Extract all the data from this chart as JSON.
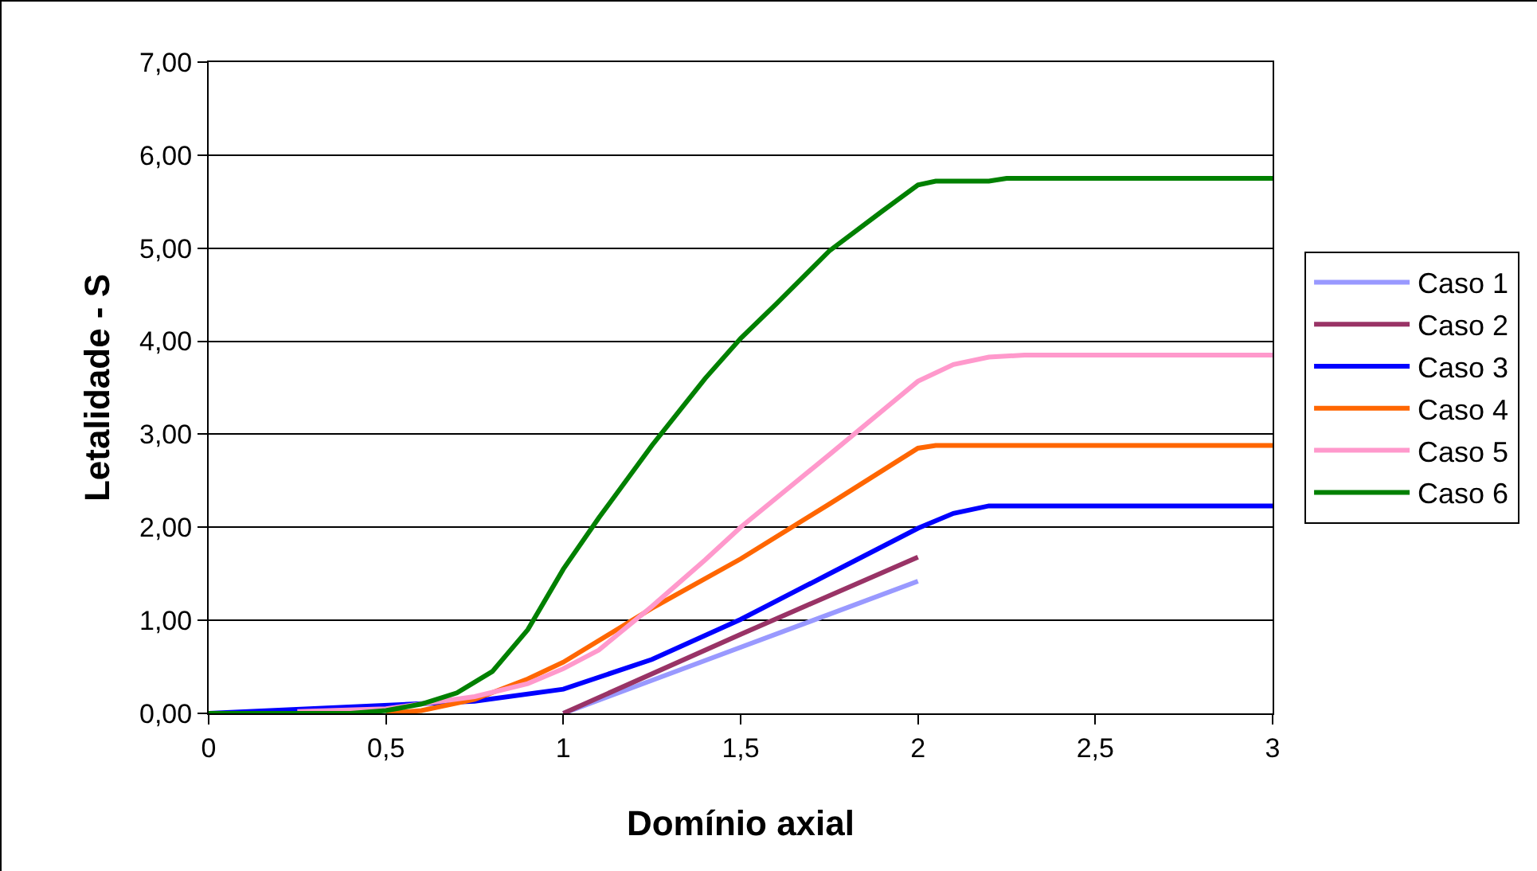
{
  "chart_data": {
    "type": "line",
    "xlabel": "Domínio axial",
    "ylabel": "Letalidade - S",
    "xlim": [
      0,
      3
    ],
    "xticks": [
      0,
      {
        "value": 0.5,
        "label": "0,5"
      },
      1,
      {
        "value": 1.5,
        "label": "1,5"
      },
      2,
      {
        "value": 2.5,
        "label": "2,5"
      },
      3
    ],
    "ylim": [
      0,
      7
    ],
    "yticks": [
      {
        "value": 0,
        "label": "0,00"
      },
      {
        "value": 1,
        "label": "1,00"
      },
      {
        "value": 2,
        "label": "2,00"
      },
      {
        "value": 3,
        "label": "3,00"
      },
      {
        "value": 4,
        "label": "4,00"
      },
      {
        "value": 5,
        "label": "5,00"
      },
      {
        "value": 6,
        "label": "6,00"
      },
      {
        "value": 7,
        "label": "7,00"
      }
    ],
    "grid": "y",
    "legend": "right",
    "marker": "none",
    "line_style": "solid",
    "series": [
      {
        "name": "Caso 1",
        "color": "#9999ff",
        "x": [
          1,
          1.5,
          2
        ],
        "values": [
          0,
          0.71,
          1.42
        ]
      },
      {
        "name": "Caso 2",
        "color": "#993366",
        "x": [
          1,
          1.5,
          2
        ],
        "values": [
          0,
          0.85,
          1.68
        ]
      },
      {
        "name": "Caso 3",
        "color": "#0000ff",
        "x": [
          0,
          0.75,
          1,
          1.25,
          1.5,
          1.75,
          2,
          2.1,
          2.2,
          3
        ],
        "values": [
          0,
          0.13,
          0.26,
          0.58,
          1.01,
          1.5,
          1.99,
          2.15,
          2.23,
          2.23
        ]
      },
      {
        "name": "Caso 4",
        "color": "#ff6600",
        "x": [
          0.5,
          0.6,
          0.75,
          0.9,
          1,
          1.25,
          1.5,
          1.75,
          2,
          2.05,
          3
        ],
        "values": [
          0,
          0.03,
          0.15,
          0.37,
          0.55,
          1.13,
          1.66,
          2.25,
          2.85,
          2.88,
          2.88
        ]
      },
      {
        "name": "Caso 5",
        "color": "#ff99cc",
        "x": [
          0.25,
          0.5,
          0.75,
          0.9,
          1,
          1.1,
          1.25,
          1.4,
          1.5,
          1.75,
          2,
          2.1,
          2.2,
          2.3,
          3
        ],
        "values": [
          0.02,
          0.05,
          0.18,
          0.32,
          0.48,
          0.68,
          1.15,
          1.65,
          2,
          2.78,
          3.57,
          3.75,
          3.83,
          3.85,
          3.85
        ]
      },
      {
        "name": "Caso 6",
        "color": "#008000",
        "x": [
          0,
          0.4,
          0.5,
          0.6,
          0.7,
          0.8,
          0.9,
          1,
          1.1,
          1.25,
          1.4,
          1.5,
          1.6,
          1.75,
          1.9,
          2,
          2.05,
          2.2,
          2.25,
          3
        ],
        "values": [
          0,
          0,
          0.03,
          0.1,
          0.22,
          0.45,
          0.9,
          1.55,
          2.1,
          2.88,
          3.6,
          4.03,
          4.4,
          4.97,
          5.4,
          5.68,
          5.72,
          5.72,
          5.75,
          5.75
        ]
      }
    ]
  }
}
